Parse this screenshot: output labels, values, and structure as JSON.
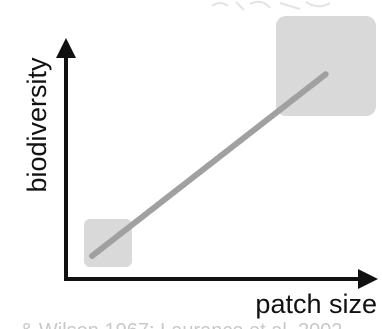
{
  "diagram": {
    "y_axis_label": "biodiversity",
    "x_axis_label": "patch size",
    "footer_text": "& Wilson 1967; Laurance et al. 2002",
    "colors": {
      "axis": "#111111",
      "patch": "#d9d9d9",
      "trend_line": "#9c9c9c",
      "footer": "#c8c8c8"
    },
    "elements": {
      "small_patch": "small-patch-square",
      "large_patch": "large-patch-square",
      "trend": "positive-relationship-line"
    }
  }
}
